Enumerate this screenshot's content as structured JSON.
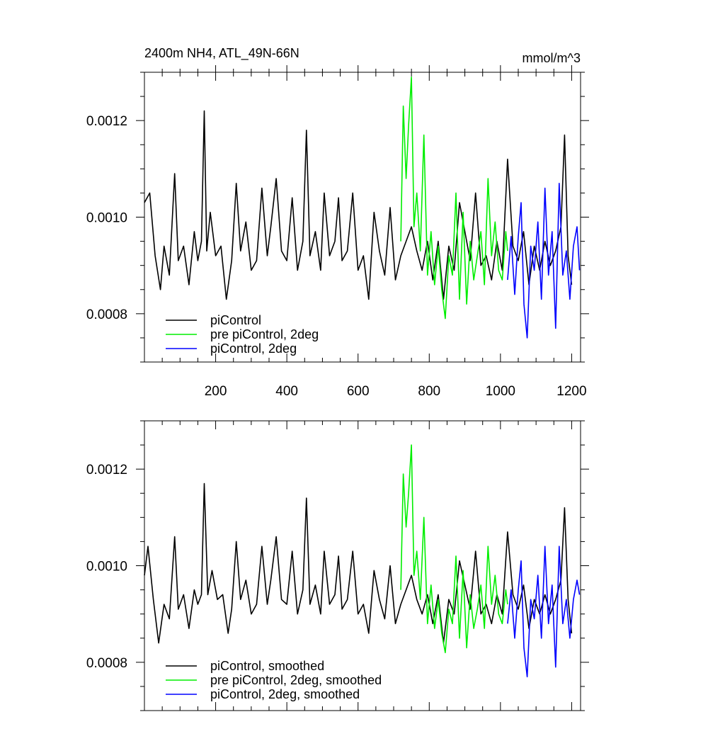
{
  "chart_data": [
    {
      "type": "line",
      "title": "2400m NH4, ATL_49N-66N",
      "units": "mmol/m^3",
      "xlim": [
        0,
        1225
      ],
      "ylim": [
        0.0007,
        0.0013
      ],
      "x_ticks": [
        200,
        400,
        600,
        800,
        1000,
        1200
      ],
      "x_tick_labels": [
        "200",
        "400",
        "600",
        "800",
        "1000",
        "1200"
      ],
      "y_ticks": [
        0.0008,
        0.001,
        0.0012
      ],
      "y_tick_labels": [
        "0.0008",
        "0.0010",
        "0.0012"
      ],
      "legend_position": "bottom-left",
      "series": [
        {
          "name": "piControl",
          "color": "#000000",
          "x": [
            0,
            15,
            30,
            45,
            55,
            70,
            85,
            95,
            110,
            125,
            140,
            150,
            160,
            168,
            175,
            185,
            200,
            215,
            230,
            245,
            258,
            270,
            285,
            300,
            315,
            330,
            345,
            355,
            370,
            385,
            400,
            415,
            430,
            445,
            455,
            465,
            480,
            495,
            505,
            520,
            535,
            545,
            555,
            570,
            585,
            600,
            615,
            630,
            645,
            660,
            675,
            690,
            705,
            720,
            735,
            750,
            765,
            780,
            795,
            810,
            825,
            840,
            855,
            870,
            885,
            900,
            915,
            930,
            945,
            960,
            975,
            990,
            1005,
            1020,
            1035,
            1050,
            1065,
            1080,
            1095,
            1110,
            1125,
            1140,
            1155,
            1170,
            1180,
            1190,
            1200
          ],
          "y": [
            0.00103,
            0.00105,
            0.00092,
            0.00085,
            0.00094,
            0.00088,
            0.00109,
            0.00091,
            0.00094,
            0.00086,
            0.00097,
            0.00091,
            0.00095,
            0.00122,
            0.00093,
            0.00101,
            0.00092,
            0.00094,
            0.00083,
            0.00091,
            0.00107,
            0.00093,
            0.00099,
            0.00089,
            0.00091,
            0.00106,
            0.00092,
            0.00098,
            0.00108,
            0.00093,
            0.00091,
            0.00104,
            0.00089,
            0.00095,
            0.00118,
            0.00092,
            0.00097,
            0.00089,
            0.00105,
            0.00092,
            0.00095,
            0.00104,
            0.00091,
            0.00093,
            0.00105,
            0.00089,
            0.00092,
            0.00083,
            0.00101,
            0.00093,
            0.00088,
            0.00102,
            0.00087,
            0.00092,
            0.00095,
            0.00098,
            0.00093,
            0.00089,
            0.00095,
            0.00087,
            0.00095,
            0.00083,
            0.00094,
            0.00089,
            0.00103,
            0.00097,
            0.00091,
            0.00105,
            0.0009,
            0.00092,
            0.00087,
            0.00095,
            0.00089,
            0.00112,
            0.00094,
            0.00091,
            0.00097,
            0.00086,
            0.00094,
            0.00089,
            0.00095,
            0.0009,
            0.00093,
            0.00098,
            0.00117,
            0.00092,
            0.00086
          ]
        },
        {
          "name": "pre piControl, 2deg",
          "color": "#00ee00",
          "x": [
            720,
            727,
            735,
            742,
            750,
            757,
            765,
            775,
            785,
            795,
            805,
            815,
            825,
            835,
            845,
            855,
            865,
            875,
            885,
            895,
            905,
            915,
            925,
            935,
            945,
            955,
            965,
            975,
            985,
            995,
            1005,
            1015,
            1020
          ],
          "y": [
            0.00095,
            0.00123,
            0.00108,
            0.00119,
            0.00129,
            0.00098,
            0.00105,
            0.00093,
            0.00117,
            0.00088,
            0.00097,
            0.00086,
            0.00094,
            0.00085,
            0.00079,
            0.00092,
            0.00088,
            0.00105,
            0.00083,
            0.00101,
            0.00082,
            0.00095,
            0.00087,
            0.00092,
            0.00097,
            0.00086,
            0.00108,
            0.00092,
            0.00099,
            0.00089,
            0.00087,
            0.00097,
            0.00093
          ]
        },
        {
          "name": "piControl, 2deg",
          "color": "#0000ff",
          "x": [
            1020,
            1030,
            1040,
            1050,
            1058,
            1066,
            1075,
            1085,
            1095,
            1105,
            1115,
            1125,
            1135,
            1145,
            1155,
            1165,
            1175,
            1185,
            1195,
            1205,
            1215,
            1222
          ],
          "y": [
            0.00087,
            0.00096,
            0.00084,
            0.00096,
            0.00103,
            0.00082,
            0.00075,
            0.00094,
            0.00089,
            0.00099,
            0.00083,
            0.00106,
            0.00088,
            0.00097,
            0.00077,
            0.00107,
            0.00088,
            0.00093,
            0.00083,
            0.00094,
            0.00098,
            0.00089
          ]
        }
      ]
    },
    {
      "type": "line",
      "xlim": [
        0,
        1225
      ],
      "ylim": [
        0.0007,
        0.0013
      ],
      "y_ticks": [
        0.0008,
        0.001,
        0.0012
      ],
      "y_tick_labels": [
        "0.0008",
        "0.0010",
        "0.0012"
      ],
      "legend_position": "bottom-left",
      "series": [
        {
          "name": "piControl, smoothed",
          "color": "#000000",
          "x": [
            0,
            10,
            25,
            40,
            55,
            70,
            85,
            95,
            110,
            125,
            140,
            150,
            160,
            168,
            178,
            190,
            205,
            220,
            235,
            245,
            258,
            270,
            285,
            300,
            315,
            330,
            345,
            355,
            370,
            385,
            400,
            415,
            430,
            445,
            455,
            465,
            480,
            495,
            505,
            520,
            535,
            545,
            555,
            570,
            585,
            600,
            615,
            630,
            645,
            660,
            675,
            690,
            705,
            720,
            735,
            750,
            765,
            780,
            795,
            810,
            825,
            840,
            855,
            870,
            885,
            900,
            915,
            930,
            945,
            960,
            975,
            990,
            1005,
            1020,
            1035,
            1050,
            1065,
            1080,
            1095,
            1110,
            1125,
            1140,
            1155,
            1170,
            1180,
            1190,
            1200
          ],
          "y": [
            0.00098,
            0.00104,
            0.00093,
            0.00084,
            0.00092,
            0.00089,
            0.00106,
            0.00091,
            0.00094,
            0.00087,
            0.00095,
            0.00092,
            0.00094,
            0.00117,
            0.00094,
            0.00099,
            0.00093,
            0.00094,
            0.00086,
            0.00091,
            0.00105,
            0.00093,
            0.00097,
            0.0009,
            0.00092,
            0.00104,
            0.00092,
            0.00097,
            0.00106,
            0.00093,
            0.00092,
            0.00103,
            0.0009,
            0.00095,
            0.00114,
            0.00092,
            0.00096,
            0.0009,
            0.00103,
            0.00092,
            0.00094,
            0.00102,
            0.00091,
            0.00093,
            0.00103,
            0.0009,
            0.00092,
            0.00086,
            0.00099,
            0.00093,
            0.00089,
            0.001,
            0.00088,
            0.00092,
            0.00095,
            0.00098,
            0.00093,
            0.0009,
            0.00094,
            0.00088,
            0.00094,
            0.00084,
            0.00093,
            0.0009,
            0.00101,
            0.00096,
            0.00091,
            0.00103,
            0.0009,
            0.00092,
            0.00088,
            0.00094,
            0.0009,
            0.00107,
            0.00094,
            0.00091,
            0.00096,
            0.00087,
            0.00093,
            0.0009,
            0.00094,
            0.0009,
            0.00093,
            0.00097,
            0.00112,
            0.00093,
            0.00086
          ]
        },
        {
          "name": "pre piControl, 2deg, smoothed",
          "color": "#00ee00",
          "x": [
            720,
            727,
            735,
            742,
            750,
            757,
            765,
            775,
            785,
            795,
            805,
            815,
            825,
            835,
            845,
            855,
            865,
            875,
            885,
            895,
            905,
            915,
            925,
            935,
            945,
            955,
            965,
            975,
            985,
            995,
            1005,
            1015,
            1020
          ],
          "y": [
            0.00095,
            0.00119,
            0.00108,
            0.00115,
            0.00125,
            0.00098,
            0.00103,
            0.00093,
            0.0011,
            0.00088,
            0.00096,
            0.00087,
            0.00093,
            0.00086,
            0.00082,
            0.00091,
            0.00088,
            0.00102,
            0.00085,
            0.00099,
            0.00083,
            0.00094,
            0.00087,
            0.00091,
            0.00096,
            0.00087,
            0.00104,
            0.00092,
            0.00098,
            0.0009,
            0.00088,
            0.00095,
            0.00092
          ]
        },
        {
          "name": "piControl, 2deg, smoothed",
          "color": "#0000ff",
          "x": [
            1020,
            1030,
            1040,
            1050,
            1058,
            1066,
            1075,
            1085,
            1095,
            1105,
            1115,
            1125,
            1135,
            1145,
            1155,
            1165,
            1175,
            1185,
            1195,
            1205,
            1215,
            1222
          ],
          "y": [
            0.00088,
            0.00095,
            0.00085,
            0.00095,
            0.00101,
            0.00083,
            0.00077,
            0.00093,
            0.00089,
            0.00098,
            0.00085,
            0.00104,
            0.00088,
            0.00096,
            0.00079,
            0.00104,
            0.00088,
            0.00093,
            0.00085,
            0.00093,
            0.00097,
            0.00094
          ]
        }
      ]
    }
  ]
}
